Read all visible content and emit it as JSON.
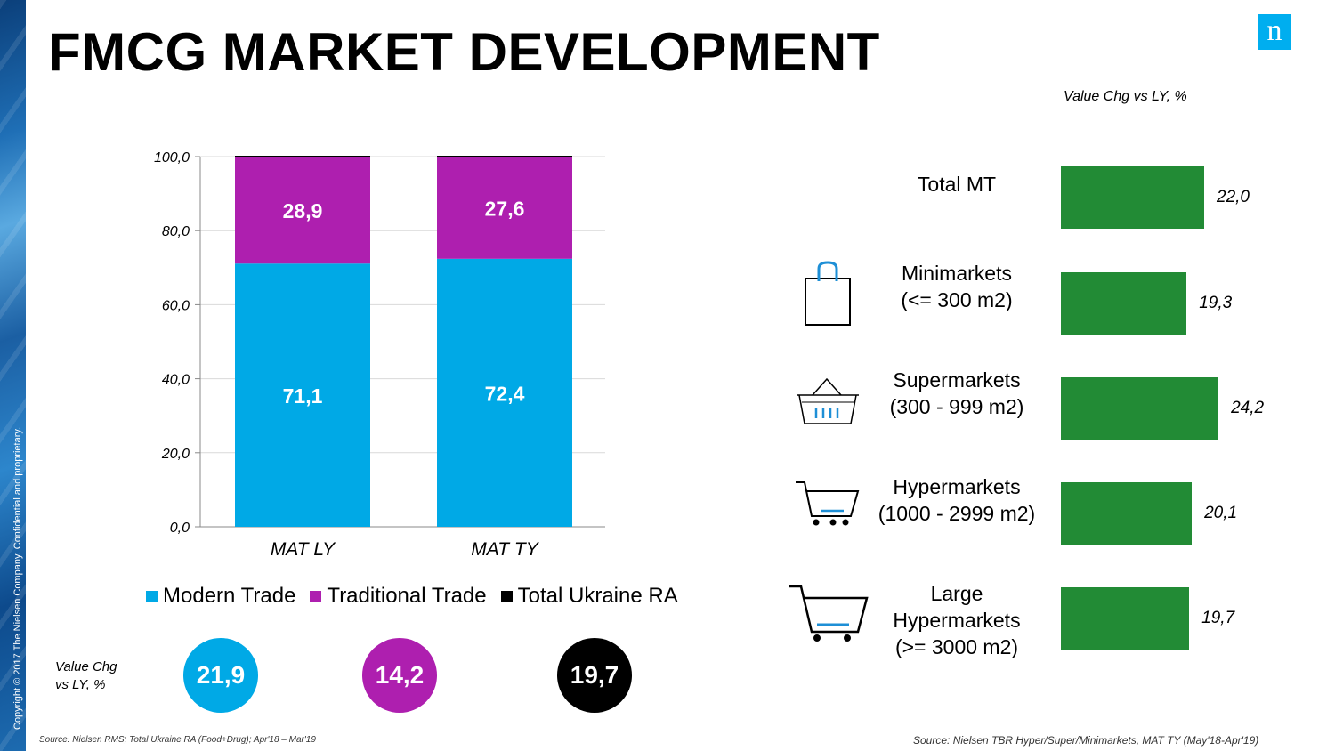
{
  "title": "FMCG MARKET DEVELOPMENT",
  "copyright": "Copyright © 2017 The Nielsen Company. Confidential and proprietary.",
  "logo_letter": "n",
  "colors": {
    "modern": "#00A9E6",
    "traditional": "#AE1FAF",
    "total": "#000000",
    "bar_green": "#228B35"
  },
  "chart_data": [
    {
      "type": "bar",
      "stacked": true,
      "categories": [
        "MAT LY",
        "MAT TY"
      ],
      "series": [
        {
          "name": "Modern Trade",
          "values": [
            71.1,
            72.4
          ],
          "labels": [
            "71,1",
            "72,4"
          ]
        },
        {
          "name": "Traditional Trade",
          "values": [
            28.9,
            27.6
          ],
          "labels": [
            "28,9",
            "27,6"
          ]
        }
      ],
      "ylim": [
        0,
        100
      ],
      "yticks": [
        "0,0",
        "20,0",
        "40,0",
        "60,0",
        "80,0",
        "100,0"
      ],
      "grid": true,
      "legend": [
        "Modern Trade",
        "Traditional Trade",
        "Total Ukraine RA"
      ],
      "legend_position": "bottom"
    },
    {
      "type": "bar",
      "orientation": "horizontal",
      "title": "Value Chg vs LY, %",
      "categories": [
        "Total MT",
        "Minimarkets (<= 300 m2)",
        "Supermarkets (300 - 999 m2)",
        "Hypermarkets (1000 - 2999 m2)",
        "Large Hypermarkets (>= 3000 m2)"
      ],
      "values": [
        22.0,
        19.3,
        24.2,
        20.1,
        19.7
      ],
      "labels": [
        "22,0",
        "19,3",
        "24,2",
        "20,1",
        "19,7"
      ]
    }
  ],
  "value_change": {
    "label_line1": "Value Chg",
    "label_line2": "vs LY, %",
    "bubbles": [
      {
        "name": "Modern Trade",
        "value": "21,9",
        "color": "#00A9E6"
      },
      {
        "name": "Traditional Trade",
        "value": "14,2",
        "color": "#AE1FAF"
      },
      {
        "name": "Total Ukraine RA",
        "value": "19,7",
        "color": "#000000"
      }
    ]
  },
  "formats": [
    {
      "lines": [
        "Total MT"
      ],
      "icon": "none"
    },
    {
      "lines": [
        "Minimarkets",
        "(<= 300 m2)"
      ],
      "icon": "shopping-bag-icon"
    },
    {
      "lines": [
        "Supermarkets",
        "(300 - 999 m2)"
      ],
      "icon": "basket-icon"
    },
    {
      "lines": [
        "Hypermarkets",
        "(1000 - 2999 m2)"
      ],
      "icon": "cart-icon"
    },
    {
      "lines": [
        "Large",
        "Hypermarkets",
        "(>= 3000 m2)"
      ],
      "icon": "large-cart-icon"
    }
  ],
  "source_left": "Source: Nielsen RMS; Total Ukraine RA (Food+Drug);  Apr'18 – Mar'19",
  "source_right": "Source: Nielsen  TBR Hyper/Super/Minimarkets, MAT TY (May'18-Apr'19)"
}
